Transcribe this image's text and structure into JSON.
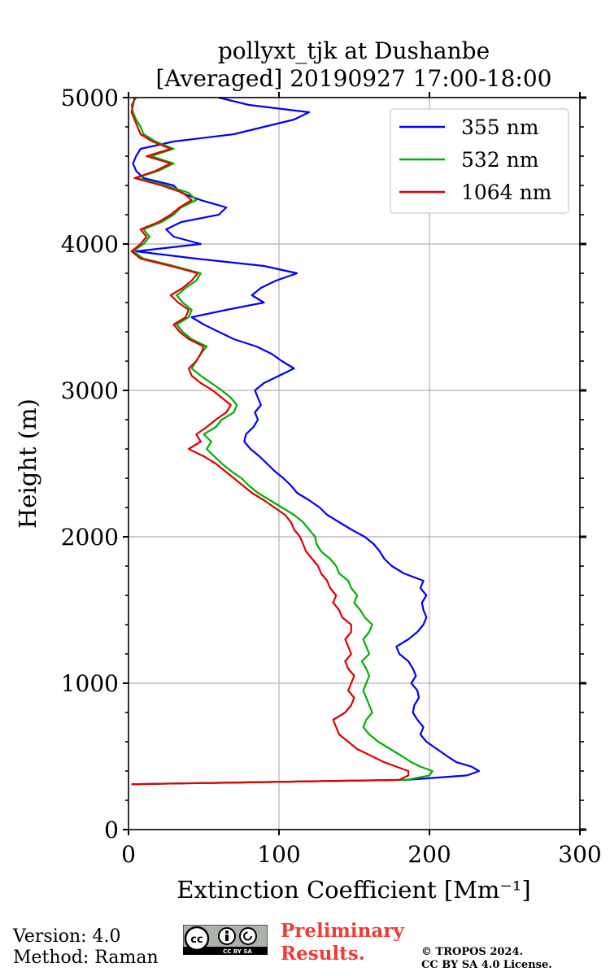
{
  "chart_data": {
    "type": "line",
    "title_line1": "pollyxt_tjk at Dushanbe",
    "title_line2": "[Averaged] 20190927 17:00-18:00",
    "xlabel": "Extinction Coefficient [Mm⁻¹]",
    "ylabel": "Height (m)",
    "xlim": [
      0,
      300
    ],
    "ylim": [
      0,
      5000
    ],
    "xticks": [
      0,
      100,
      200,
      300
    ],
    "xtick_labels": [
      "0",
      "100",
      "200",
      "300"
    ],
    "yticks": [
      0,
      1000,
      2000,
      3000,
      4000,
      5000
    ],
    "ytick_labels": [
      "0",
      "1000",
      "2000",
      "3000",
      "4000",
      "5000"
    ],
    "grid": true,
    "legend_position": "top-right",
    "series": [
      {
        "name": "355 nm",
        "color": "#0000ff",
        "heights": [
          310,
          340,
          370,
          400,
          430,
          460,
          500,
          550,
          600,
          650,
          700,
          750,
          800,
          850,
          900,
          950,
          1000,
          1050,
          1100,
          1150,
          1200,
          1250,
          1300,
          1350,
          1400,
          1450,
          1500,
          1550,
          1600,
          1650,
          1700,
          1750,
          1800,
          1850,
          1900,
          1950,
          2000,
          2050,
          2100,
          2150,
          2200,
          2250,
          2300,
          2350,
          2400,
          2450,
          2500,
          2550,
          2600,
          2650,
          2700,
          2750,
          2800,
          2850,
          2900,
          2950,
          3000,
          3050,
          3100,
          3150,
          3200,
          3250,
          3300,
          3350,
          3400,
          3450,
          3500,
          3550,
          3600,
          3650,
          3700,
          3750,
          3800,
          3850,
          3900,
          3950,
          4000,
          4050,
          4100,
          4150,
          4200,
          4250,
          4300,
          4350,
          4400,
          4450,
          4500,
          4550,
          4600,
          4650,
          4700,
          4750,
          4800,
          4850,
          4900,
          4950,
          5000
        ],
        "values": [
          2,
          185,
          225,
          233,
          228,
          218,
          212,
          205,
          198,
          194,
          196,
          192,
          189,
          190,
          193,
          192,
          188,
          191,
          189,
          186,
          180,
          178,
          186,
          192,
          196,
          198,
          196,
          195,
          198,
          194,
          196,
          183,
          175,
          170,
          167,
          163,
          157,
          148,
          140,
          132,
          127,
          120,
          112,
          108,
          103,
          97,
          92,
          87,
          81,
          77,
          78,
          83,
          86,
          84,
          88,
          86,
          84,
          90,
          100,
          110,
          102,
          95,
          85,
          70,
          60,
          50,
          42,
          65,
          90,
          82,
          88,
          98,
          112,
          90,
          45,
          5,
          48,
          30,
          25,
          35,
          60,
          65,
          48,
          35,
          30,
          10,
          5,
          3,
          5,
          8,
          30,
          70,
          90,
          110,
          120,
          80,
          60
        ]
      },
      {
        "name": "532 nm",
        "color": "#00b000",
        "heights": [
          310,
          340,
          370,
          400,
          430,
          460,
          500,
          550,
          600,
          650,
          700,
          750,
          800,
          850,
          900,
          950,
          1000,
          1050,
          1100,
          1150,
          1200,
          1250,
          1300,
          1350,
          1400,
          1450,
          1500,
          1550,
          1600,
          1650,
          1700,
          1750,
          1800,
          1850,
          1900,
          1950,
          2000,
          2050,
          2100,
          2150,
          2200,
          2250,
          2300,
          2350,
          2400,
          2450,
          2500,
          2550,
          2600,
          2650,
          2700,
          2750,
          2800,
          2850,
          2900,
          2950,
          3000,
          3050,
          3100,
          3150,
          3200,
          3250,
          3300,
          3350,
          3400,
          3450,
          3500,
          3550,
          3600,
          3650,
          3700,
          3750,
          3800,
          3850,
          3900,
          3950,
          4000,
          4050,
          4100,
          4150,
          4200,
          4250,
          4300,
          4350,
          4400,
          4450,
          4500,
          4550,
          4600,
          4650,
          4700,
          4750,
          4800,
          4850,
          4900,
          4950,
          5000
        ],
        "values": [
          2,
          185,
          200,
          202,
          194,
          188,
          182,
          174,
          166,
          160,
          156,
          158,
          162,
          160,
          158,
          156,
          158,
          160,
          158,
          155,
          160,
          158,
          156,
          160,
          162,
          157,
          154,
          150,
          152,
          148,
          146,
          140,
          138,
          134,
          128,
          125,
          124,
          120,
          116,
          110,
          102,
          94,
          86,
          80,
          75,
          68,
          62,
          57,
          52,
          55,
          50,
          58,
          62,
          70,
          72,
          68,
          62,
          55,
          48,
          42,
          45,
          48,
          52,
          42,
          36,
          32,
          40,
          42,
          36,
          32,
          38,
          45,
          48,
          30,
          10,
          3,
          10,
          14,
          10,
          22,
          30,
          35,
          45,
          40,
          25,
          5,
          20,
          30,
          15,
          30,
          18,
          10,
          8,
          5,
          3,
          2,
          5
        ]
      },
      {
        "name": "1064 nm",
        "color": "#e00000",
        "heights": [
          310,
          340,
          370,
          400,
          430,
          460,
          500,
          550,
          600,
          650,
          700,
          750,
          800,
          850,
          900,
          950,
          1000,
          1050,
          1100,
          1150,
          1200,
          1250,
          1300,
          1350,
          1400,
          1450,
          1500,
          1550,
          1600,
          1650,
          1700,
          1750,
          1800,
          1850,
          1900,
          1950,
          2000,
          2050,
          2100,
          2150,
          2200,
          2250,
          2300,
          2350,
          2400,
          2450,
          2500,
          2550,
          2600,
          2650,
          2700,
          2750,
          2800,
          2850,
          2900,
          2950,
          3000,
          3050,
          3100,
          3150,
          3200,
          3250,
          3300,
          3350,
          3400,
          3450,
          3500,
          3550,
          3600,
          3650,
          3700,
          3750,
          3800,
          3850,
          3900,
          3950,
          4000,
          4050,
          4100,
          4150,
          4200,
          4250,
          4300,
          4350,
          4400,
          4450,
          4500,
          4550,
          4600,
          4650,
          4700,
          4750,
          4800,
          4850,
          4900,
          4950,
          5000
        ],
        "values": [
          2,
          180,
          186,
          186,
          178,
          170,
          162,
          152,
          146,
          140,
          138,
          136,
          144,
          148,
          150,
          146,
          148,
          150,
          146,
          144,
          148,
          146,
          144,
          148,
          148,
          142,
          140,
          136,
          138,
          134,
          132,
          128,
          126,
          122,
          118,
          116,
          114,
          110,
          108,
          104,
          97,
          90,
          82,
          76,
          70,
          64,
          58,
          50,
          40,
          48,
          45,
          52,
          58,
          65,
          68,
          62,
          56,
          48,
          42,
          40,
          45,
          48,
          50,
          40,
          34,
          30,
          38,
          40,
          33,
          28,
          36,
          42,
          46,
          28,
          8,
          2,
          8,
          12,
          8,
          20,
          28,
          34,
          42,
          36,
          22,
          4,
          18,
          28,
          12,
          28,
          16,
          8,
          6,
          4,
          2,
          3,
          4
        ]
      }
    ]
  },
  "footer": {
    "version": "Version: 4.0",
    "method": "Method: Raman",
    "preliminary_line1": "Preliminary",
    "preliminary_line2": "Results.",
    "copyright_line1": "© TROPOS 2024.",
    "copyright_line2": "CC BY SA 4.0 License.",
    "license_badge": "CC BY SA"
  }
}
